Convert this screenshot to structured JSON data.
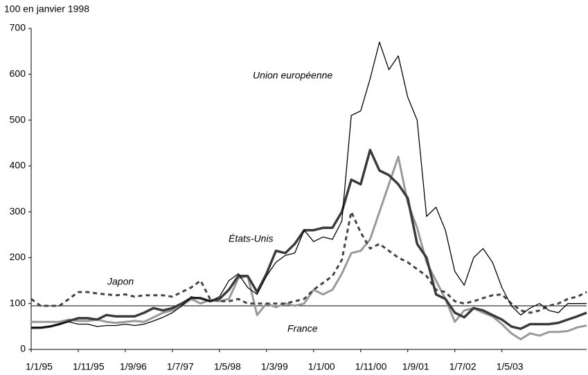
{
  "chart_data": {
    "type": "line",
    "ylabel": "100 en janvier 1998",
    "categories": [
      "1/1/95",
      null,
      null,
      null,
      null,
      "1/11/95",
      null,
      null,
      null,
      null,
      "1/9/96",
      null,
      null,
      null,
      null,
      "1/7/97",
      null,
      null,
      null,
      null,
      "1/5/98",
      null,
      null,
      null,
      null,
      "1/3/99",
      null,
      null,
      null,
      null,
      "1/1/00",
      null,
      null,
      null,
      null,
      "1/11/00",
      null,
      null,
      null,
      null,
      "1/9/01",
      null,
      null,
      null,
      null,
      "1/7/02",
      null,
      null,
      null,
      null,
      "1/5/03",
      null,
      null,
      null,
      null,
      null,
      null,
      null,
      null,
      null
    ],
    "series": [
      {
        "name": "Union européenne",
        "color": "#000000",
        "width": 1.3,
        "style": "solid",
        "values": [
          47,
          48,
          50,
          55,
          60,
          55,
          55,
          50,
          52,
          52,
          55,
          52,
          55,
          62,
          70,
          80,
          95,
          115,
          110,
          105,
          115,
          150,
          165,
          135,
          120,
          160,
          190,
          205,
          210,
          260,
          235,
          245,
          240,
          280,
          510,
          520,
          590,
          670,
          610,
          640,
          550,
          500,
          290,
          310,
          260,
          170,
          140,
          200,
          220,
          190,
          135,
          95,
          75,
          90,
          100,
          85,
          80,
          100,
          100,
          100
        ]
      },
      {
        "name": "États-Unis",
        "color": "#3a3a3a",
        "width": 3.5,
        "style": "solid",
        "values": [
          47,
          47,
          50,
          55,
          62,
          68,
          68,
          65,
          75,
          72,
          72,
          72,
          80,
          90,
          85,
          90,
          100,
          112,
          112,
          105,
          110,
          130,
          160,
          160,
          125,
          165,
          215,
          210,
          230,
          260,
          260,
          265,
          265,
          300,
          370,
          360,
          435,
          390,
          380,
          360,
          330,
          230,
          200,
          120,
          110,
          80,
          70,
          90,
          85,
          75,
          65,
          50,
          45,
          55,
          55,
          55,
          58,
          65,
          72,
          80
        ]
      },
      {
        "name": "Japon",
        "color": "#444444",
        "width": 3,
        "style": "dashed",
        "values": [
          110,
          95,
          95,
          95,
          110,
          125,
          125,
          122,
          120,
          118,
          120,
          115,
          118,
          118,
          118,
          115,
          125,
          135,
          150,
          110,
          105,
          105,
          110,
          100,
          100,
          100,
          100,
          100,
          105,
          110,
          130,
          145,
          160,
          195,
          300,
          255,
          220,
          230,
          215,
          200,
          190,
          175,
          160,
          130,
          125,
          105,
          100,
          105,
          112,
          118,
          120,
          100,
          85,
          80,
          85,
          95,
          100,
          110,
          115,
          125
        ]
      },
      {
        "name": "France",
        "color": "#999999",
        "width": 3,
        "style": "solid",
        "values": [
          60,
          60,
          60,
          60,
          65,
          62,
          62,
          65,
          60,
          58,
          60,
          62,
          60,
          70,
          80,
          85,
          95,
          110,
          100,
          108,
          105,
          110,
          155,
          160,
          75,
          100,
          92,
          100,
          95,
          100,
          130,
          120,
          130,
          165,
          210,
          215,
          240,
          300,
          360,
          420,
          320,
          265,
          190,
          150,
          110,
          60,
          85,
          90,
          80,
          72,
          55,
          35,
          22,
          35,
          30,
          38,
          38,
          40,
          48,
          52
        ]
      }
    ],
    "reference_line": 95,
    "ylim": [
      0,
      700
    ],
    "yticks": [
      0,
      100,
      200,
      300,
      400,
      500,
      600,
      700
    ]
  }
}
